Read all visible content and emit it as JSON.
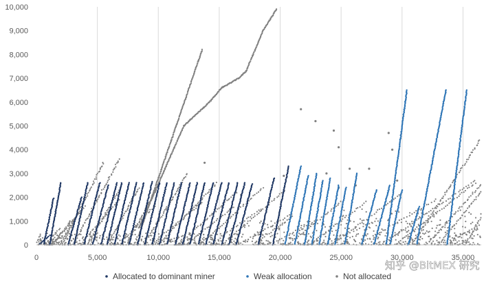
{
  "chart_data": {
    "type": "scatter",
    "title": "",
    "xlabel": "",
    "ylabel": "",
    "xlim": [
      0,
      36500
    ],
    "ylim": [
      0,
      10000
    ],
    "x_ticks": [
      0,
      5000,
      10000,
      15000,
      20000,
      25000,
      30000,
      35000
    ],
    "x_tick_labels": [
      "0",
      "5,000",
      "10,000",
      "15,000",
      "20,000",
      "25,000",
      "30,000",
      "35,000"
    ],
    "y_ticks": [
      0,
      1000,
      2000,
      3000,
      4000,
      5000,
      6000,
      7000,
      8000,
      9000,
      10000
    ],
    "y_tick_labels": [
      "0",
      "1,000",
      "2,000",
      "3,000",
      "4,000",
      "5,000",
      "6,000",
      "7,000",
      "8,000",
      "9,000",
      "10,000"
    ],
    "grid": "vertical",
    "legend_position": "bottom",
    "series": [
      {
        "name": "Allocated to dominant miner",
        "color": "#203864",
        "runs": [
          [
            200,
            900,
            400
          ],
          [
            600,
            800,
            1950
          ],
          [
            1100,
            900,
            2600
          ],
          [
            2600,
            1100,
            2000
          ],
          [
            3100,
            1100,
            2600
          ],
          [
            3900,
            1300,
            2600
          ],
          [
            4600,
            1300,
            2500
          ],
          [
            5300,
            1300,
            2600
          ],
          [
            5800,
            1200,
            2600
          ],
          [
            6400,
            1200,
            2600
          ],
          [
            7000,
            1200,
            2600
          ],
          [
            7600,
            1200,
            2600
          ],
          [
            8300,
            1200,
            2650
          ],
          [
            8900,
            1200,
            2600
          ],
          [
            9500,
            1200,
            2600
          ],
          [
            10100,
            1200,
            2600
          ],
          [
            10700,
            1200,
            2600
          ],
          [
            11400,
            1200,
            2600
          ],
          [
            12000,
            1200,
            2600
          ],
          [
            12600,
            1200,
            2600
          ],
          [
            13300,
            1200,
            2600
          ],
          [
            13900,
            1300,
            2600
          ],
          [
            14500,
            1300,
            2600
          ],
          [
            15200,
            1300,
            2600
          ],
          [
            15800,
            1300,
            2600
          ],
          [
            16400,
            1300,
            2550
          ],
          [
            18200,
            1300,
            2800
          ],
          [
            19400,
            1300,
            3300
          ]
        ]
      },
      {
        "name": "Weak allocation",
        "color": "#2e75b6",
        "runs": [
          [
            20400,
            1300,
            3300
          ],
          [
            21200,
            1100,
            2900
          ],
          [
            22000,
            1000,
            3000
          ],
          [
            22600,
            900,
            2700
          ],
          [
            23200,
            900,
            2800
          ],
          [
            23900,
            900,
            2500
          ],
          [
            24500,
            900,
            2400
          ],
          [
            25300,
            1000,
            3000
          ],
          [
            26700,
            1200,
            2300
          ],
          [
            27700,
            1300,
            2500
          ],
          [
            28700,
            1700,
            6500
          ],
          [
            29000,
            1000,
            2300
          ],
          [
            31200,
            2400,
            6500
          ],
          [
            33700,
            1600,
            6500
          ],
          [
            30500,
            900,
            1600
          ]
        ]
      },
      {
        "name": "Not allocated",
        "color": "#808080",
        "runs": [
          [
            0,
            2000,
            300
          ],
          [
            700,
            1200,
            700
          ],
          [
            1300,
            1500,
            1000
          ],
          [
            1900,
            1500,
            1300
          ],
          [
            2100,
            3400,
            3450
          ],
          [
            3000,
            3800,
            3600
          ],
          [
            4200,
            2800,
            2500
          ],
          [
            5800,
            2600,
            2400
          ],
          [
            7400,
            2600,
            2500
          ],
          [
            8800,
            3600,
            3000
          ],
          [
            10000,
            4800,
            2600
          ],
          [
            11600,
            4800,
            2200
          ],
          [
            13400,
            5200,
            2400
          ],
          [
            15200,
            5200,
            2300
          ],
          [
            17800,
            3200,
            1200
          ],
          [
            20600,
            4400,
            1800
          ],
          [
            22400,
            4600,
            1800
          ],
          [
            24200,
            5600,
            2100
          ],
          [
            26400,
            6400,
            1900
          ],
          [
            28200,
            7800,
            2700
          ],
          [
            29400,
            6600,
            2600
          ],
          [
            30800,
            5600,
            4400
          ],
          [
            32000,
            4600,
            2600
          ],
          [
            33000,
            3600,
            2300
          ],
          [
            21000,
            7000,
            500
          ],
          [
            25000,
            6000,
            600
          ],
          [
            27400,
            6400,
            700
          ],
          [
            29000,
            6600,
            500
          ],
          [
            32400,
            4200,
            700
          ],
          [
            33600,
            2900,
            900
          ],
          [
            35200,
            1300,
            1200
          ],
          [
            1200,
            2800,
            1600
          ],
          [
            3600,
            3200,
            1900
          ],
          [
            6800,
            3000,
            1700
          ],
          [
            9400,
            4200,
            1800
          ],
          [
            12200,
            4000,
            1600
          ],
          [
            14200,
            4200,
            1500
          ],
          [
            16600,
            4400,
            1300
          ],
          [
            19000,
            3800,
            1000
          ],
          [
            23400,
            4400,
            1000
          ]
        ],
        "long_runs": [
          [
            [
              8400,
              400
            ],
            [
              13600,
              8200
            ]
          ],
          [
            [
              8400,
              700
            ],
            [
              12100,
              5000
            ],
            [
              14200,
              6000
            ],
            [
              15200,
              6600
            ],
            [
              16600,
              7000
            ],
            [
              17200,
              7300
            ],
            [
              18600,
              9000
            ],
            [
              19700,
              9900
            ]
          ]
        ],
        "outliers": [
          [
            21700,
            5700
          ],
          [
            22900,
            5200
          ],
          [
            24400,
            4800
          ],
          [
            24800,
            4100
          ],
          [
            28900,
            4700
          ],
          [
            29200,
            4000
          ],
          [
            23800,
            3000
          ],
          [
            27300,
            3200
          ],
          [
            13800,
            3450
          ],
          [
            25700,
            3200
          ],
          [
            29600,
            2700
          ],
          [
            24800,
            2400
          ],
          [
            26200,
            2500
          ],
          [
            20300,
            2900
          ],
          [
            16800,
            2100
          ]
        ]
      }
    ]
  },
  "watermark": {
    "text": "知乎 @BitMEX 研究"
  }
}
